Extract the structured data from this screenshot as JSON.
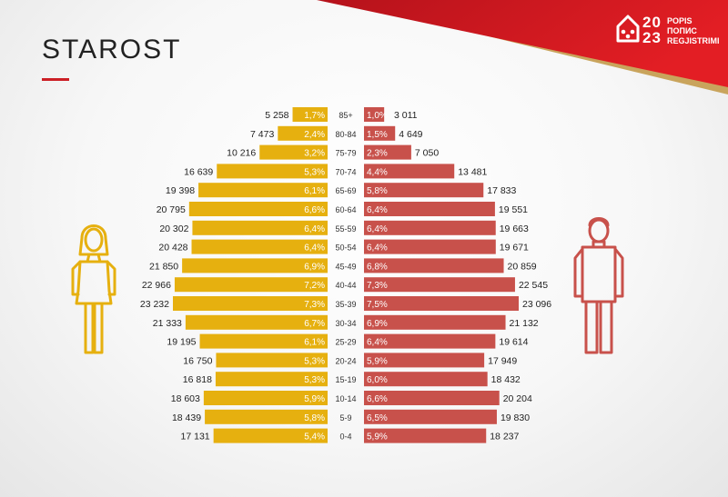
{
  "title": "STAROST",
  "logo": {
    "year_top": "20",
    "year_bottom": "23",
    "words": [
      "POPIS",
      "ПОПИС",
      "REGJISTRIMI"
    ]
  },
  "colors": {
    "female": "#e6b00f",
    "male": "#c8514b",
    "accent": "#cc1f25",
    "gold": "#c9a45c"
  },
  "icons": {
    "female": "woman-icon",
    "male": "man-icon",
    "logo": "house-logo-icon"
  },
  "chart_data": {
    "type": "bar",
    "orientation": "horizontal-back-to-back",
    "categories": [
      "85+",
      "80-84",
      "75-79",
      "70-74",
      "65-69",
      "60-64",
      "55-59",
      "50-54",
      "45-49",
      "40-44",
      "35-39",
      "30-34",
      "25-29",
      "20-24",
      "15-19",
      "10-14",
      "5-9",
      "0-4"
    ],
    "series": [
      {
        "side": "left",
        "color": "#e6b00f",
        "values": [
          5258,
          7473,
          10216,
          16639,
          19398,
          20795,
          20302,
          20428,
          21850,
          22966,
          23232,
          21333,
          19195,
          16750,
          16818,
          18603,
          18439,
          17131
        ],
        "value_labels": [
          "5 258",
          "7 473",
          "10 216",
          "16 639",
          "19 398",
          "20 795",
          "20 302",
          "20 428",
          "21 850",
          "22 966",
          "23 232",
          "21 333",
          "19 195",
          "16 750",
          "16 818",
          "18 603",
          "18 439",
          "17 131"
        ],
        "percent_labels": [
          "1,7%",
          "2,4%",
          "3,2%",
          "5,3%",
          "6,1%",
          "6,6%",
          "6,4%",
          "6,4%",
          "6,9%",
          "7,2%",
          "7,3%",
          "6,7%",
          "6,1%",
          "5,3%",
          "5,3%",
          "5,9%",
          "5,8%",
          "5,4%"
        ]
      },
      {
        "side": "right",
        "color": "#c8514b",
        "values": [
          3011,
          4649,
          7050,
          13481,
          17833,
          19551,
          19663,
          19671,
          20859,
          22545,
          23096,
          21132,
          19614,
          17949,
          18432,
          20204,
          19830,
          18237
        ],
        "value_labels": [
          "3 011",
          "4 649",
          "7 050",
          "13 481",
          "17 833",
          "19 551",
          "19 663",
          "19 671",
          "20 859",
          "22 545",
          "23 096",
          "21 132",
          "19 614",
          "17 949",
          "18 432",
          "20 204",
          "19 830",
          "18 237"
        ],
        "percent_labels": [
          "1,0%",
          "1,5%",
          "2,3%",
          "4,4%",
          "5,8%",
          "6,4%",
          "6,4%",
          "6,4%",
          "6,8%",
          "7,3%",
          "7,5%",
          "6,9%",
          "6,4%",
          "5,9%",
          "6,0%",
          "6,6%",
          "6,5%",
          "5,9%"
        ]
      }
    ],
    "xlim": [
      0,
      23232
    ],
    "grid": false,
    "legend": "none"
  }
}
